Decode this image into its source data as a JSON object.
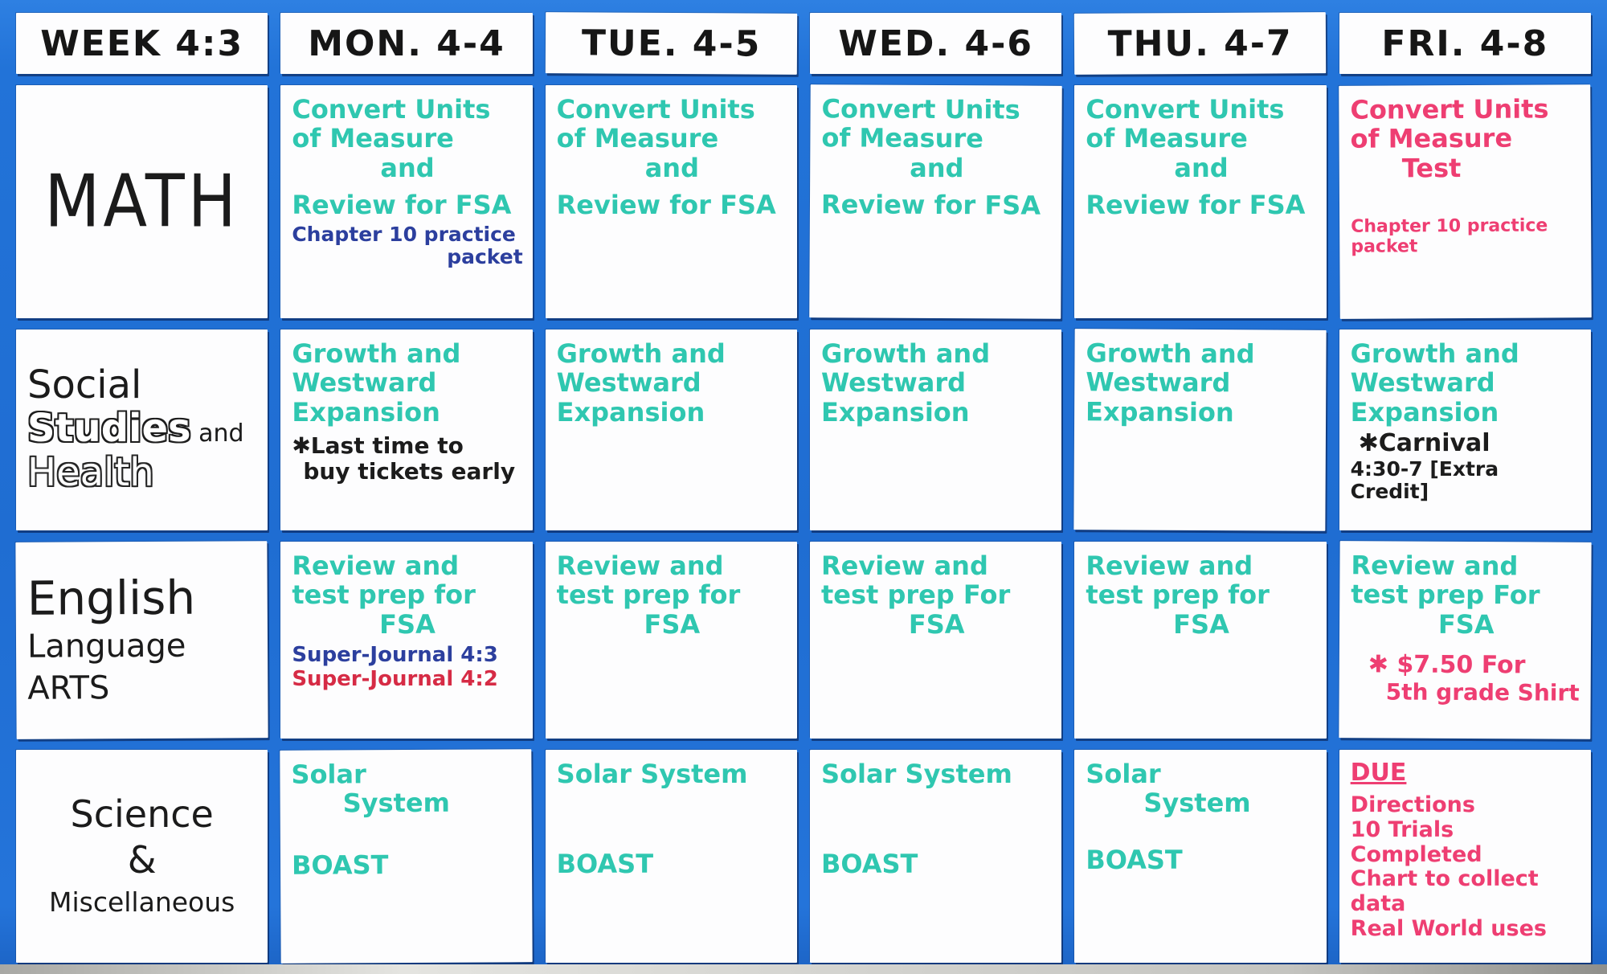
{
  "board": {
    "title": "WEEK 4:3",
    "colors": {
      "background": "#2273d8",
      "card": "#fdfdfe",
      "teal": "#2fc7b0",
      "pink": "#ee3e72",
      "red": "#d62b45",
      "blue_pen": "#2c3f9e",
      "ink": "#1c1c1c"
    },
    "header": {
      "cells": [
        {
          "key": "week",
          "label": "WEEK 4:3"
        },
        {
          "key": "mon",
          "label": "MON. 4-4"
        },
        {
          "key": "tue",
          "label": "TUE. 4-5"
        },
        {
          "key": "wed",
          "label": "WED. 4-6"
        },
        {
          "key": "thu",
          "label": "THU. 4-7"
        },
        {
          "key": "fri",
          "label": "FRI. 4-8"
        }
      ]
    },
    "rows": [
      {
        "subject": {
          "name": "math",
          "align": "center",
          "lines": [
            {
              "t": "MATH",
              "s": "s-math"
            }
          ]
        },
        "cells": [
          {
            "day": "mon",
            "lines": [
              {
                "t": "Convert Units",
                "c": "teal"
              },
              {
                "t": "of Measure",
                "c": "teal"
              },
              {
                "t": "and",
                "c": "teal",
                "align": "center"
              },
              {
                "t": "Review for FSA",
                "c": "teal",
                "gap": 10
              },
              {
                "t": "Chapter 10 practice",
                "c": "blue_pen",
                "size": 25,
                "gap": 4
              },
              {
                "t": "packet",
                "c": "blue_pen",
                "size": 25,
                "align": "right"
              }
            ]
          },
          {
            "day": "tue",
            "lines": [
              {
                "t": "Convert Units",
                "c": "teal"
              },
              {
                "t": "of Measure",
                "c": "teal"
              },
              {
                "t": "and",
                "c": "teal",
                "align": "center"
              },
              {
                "t": "Review for FSA",
                "c": "teal",
                "gap": 10
              }
            ]
          },
          {
            "day": "wed",
            "lines": [
              {
                "t": "Convert Units",
                "c": "teal"
              },
              {
                "t": "of Measure",
                "c": "teal"
              },
              {
                "t": "and",
                "c": "teal",
                "align": "center"
              },
              {
                "t": "Review  for FSA",
                "c": "teal",
                "gap": 10
              }
            ]
          },
          {
            "day": "thu",
            "lines": [
              {
                "t": "Convert Units",
                "c": "teal"
              },
              {
                "t": "of Measure",
                "c": "teal"
              },
              {
                "t": "and",
                "c": "teal",
                "align": "center"
              },
              {
                "t": "Review for FSA",
                "c": "teal",
                "gap": 10
              }
            ]
          },
          {
            "day": "fri",
            "lines": [
              {
                "t": "Convert Units",
                "c": "pink"
              },
              {
                "t": "of Measure",
                "c": "pink"
              },
              {
                "t": "Test",
                "c": "pink",
                "indent": 64
              },
              {
                "t": "Chapter 10 practice packet",
                "c": "pink",
                "size": 22,
                "gap": 42
              }
            ]
          }
        ]
      },
      {
        "subject": {
          "name": "social-studies-health",
          "lines": [
            {
              "t": "Social",
              "s": "s-bold"
            },
            {
              "parts": [
                {
                  "t": "Studies",
                  "s": "s-outline-bold"
                },
                {
                  "t": " and",
                  "s": "s-and"
                }
              ]
            },
            {
              "t": "Health",
              "s": "s-outline"
            }
          ]
        },
        "cells": [
          {
            "day": "mon",
            "lines": [
              {
                "t": "Growth and",
                "c": "teal"
              },
              {
                "t": "Westward",
                "c": "teal"
              },
              {
                "t": "Expansion",
                "c": "teal"
              },
              {
                "t": "✱Last time to",
                "c": "ink",
                "size": 28,
                "gap": 8
              },
              {
                "t": "buy tickets early",
                "c": "ink",
                "size": 28,
                "indent": 14
              }
            ]
          },
          {
            "day": "tue",
            "lines": [
              {
                "t": "Growth and",
                "c": "teal"
              },
              {
                "t": "Westward",
                "c": "teal"
              },
              {
                "t": "Expansion",
                "c": "teal"
              }
            ]
          },
          {
            "day": "wed",
            "lines": [
              {
                "t": "Growth and",
                "c": "teal"
              },
              {
                "t": "Westward",
                "c": "teal"
              },
              {
                "t": "Expansion",
                "c": "teal"
              }
            ]
          },
          {
            "day": "thu",
            "lines": [
              {
                "t": "Growth and",
                "c": "teal"
              },
              {
                "t": "Westward",
                "c": "teal"
              },
              {
                "t": "Expansion",
                "c": "teal"
              }
            ]
          },
          {
            "day": "fri",
            "lines": [
              {
                "t": "Growth and",
                "c": "teal"
              },
              {
                "t": "Westward",
                "c": "teal"
              },
              {
                "t": "Expansion",
                "c": "teal"
              },
              {
                "t": "✱Carnival",
                "c": "ink",
                "size": 30,
                "gap": 4,
                "indent": 10
              },
              {
                "t": "4:30-7 [Extra Credit]",
                "c": "ink",
                "size": 25
              }
            ]
          }
        ]
      },
      {
        "subject": {
          "name": "english-language-arts",
          "lines": [
            {
              "t": "English",
              "s": "s-eng"
            },
            {
              "t": "Language",
              "s": "s-script"
            },
            {
              "t": "ARTS",
              "s": "s-script"
            }
          ]
        },
        "cells": [
          {
            "day": "mon",
            "lines": [
              {
                "t": "Review and",
                "c": "teal"
              },
              {
                "t": "test prep for",
                "c": "teal"
              },
              {
                "t": "FSA",
                "c": "teal",
                "align": "center"
              },
              {
                "t": "Super-Journal 4:3",
                "c": "blue_pen",
                "size": 26,
                "gap": 6
              },
              {
                "t": "Super-Journal 4:2",
                "c": "red",
                "size": 26
              }
            ]
          },
          {
            "day": "tue",
            "lines": [
              {
                "t": "Review and",
                "c": "teal"
              },
              {
                "t": "test prep for",
                "c": "teal"
              },
              {
                "t": "FSA",
                "c": "teal",
                "align": "center"
              }
            ]
          },
          {
            "day": "wed",
            "lines": [
              {
                "t": "Review and",
                "c": "teal"
              },
              {
                "t": "test prep For",
                "c": "teal"
              },
              {
                "t": "FSA",
                "c": "teal",
                "align": "center"
              }
            ]
          },
          {
            "day": "thu",
            "lines": [
              {
                "t": "Review and",
                "c": "teal"
              },
              {
                "t": "test prep for",
                "c": "teal"
              },
              {
                "t": "FSA",
                "c": "teal",
                "align": "center"
              }
            ]
          },
          {
            "day": "fri",
            "lines": [
              {
                "t": "Review and",
                "c": "teal"
              },
              {
                "t": "test prep For",
                "c": "teal"
              },
              {
                "t": "FSA",
                "c": "teal",
                "align": "center"
              },
              {
                "t": "✱ $7.50 For",
                "c": "pink",
                "size": 30,
                "gap": 16,
                "indent": 22
              },
              {
                "t": "5th grade Shirt",
                "c": "pink",
                "size": 28,
                "indent": 44
              }
            ]
          }
        ]
      },
      {
        "subject": {
          "name": "science-miscellaneous",
          "align": "center",
          "lines": [
            {
              "t": "Science",
              "s": "s-science"
            },
            {
              "t": "&",
              "s": "s-science"
            },
            {
              "t": "Miscellaneous",
              "s": "s-science-sm"
            }
          ]
        },
        "cells": [
          {
            "day": "mon",
            "lines": [
              {
                "t": "Solar",
                "c": "teal"
              },
              {
                "t": "System",
                "c": "teal",
                "indent": 64
              },
              {
                "t": "BOAST",
                "c": "teal",
                "gap": 40
              }
            ]
          },
          {
            "day": "tue",
            "lines": [
              {
                "t": "Solar System",
                "c": "teal"
              },
              {
                "t": "BOAST",
                "c": "teal",
                "gap": 76
              }
            ]
          },
          {
            "day": "wed",
            "lines": [
              {
                "t": "Solar System",
                "c": "teal"
              },
              {
                "t": "BOAST",
                "c": "teal",
                "gap": 76
              }
            ]
          },
          {
            "day": "thu",
            "lines": [
              {
                "t": "Solar",
                "c": "teal"
              },
              {
                "t": "System",
                "c": "teal",
                "indent": 72
              },
              {
                "t": "BOAST",
                "c": "teal",
                "gap": 34
              }
            ]
          },
          {
            "day": "fri",
            "lines": [
              {
                "t": "DUE",
                "c": "pink",
                "size": 30,
                "u": true
              },
              {
                "t": "Directions",
                "c": "pink",
                "size": 27,
                "gap": 8
              },
              {
                "t": "10 Trials Completed",
                "c": "pink",
                "size": 27
              },
              {
                "t": "Chart to collect data",
                "c": "pink",
                "size": 27
              },
              {
                "t": "Real World uses",
                "c": "pink",
                "size": 27
              }
            ]
          }
        ]
      }
    ]
  }
}
